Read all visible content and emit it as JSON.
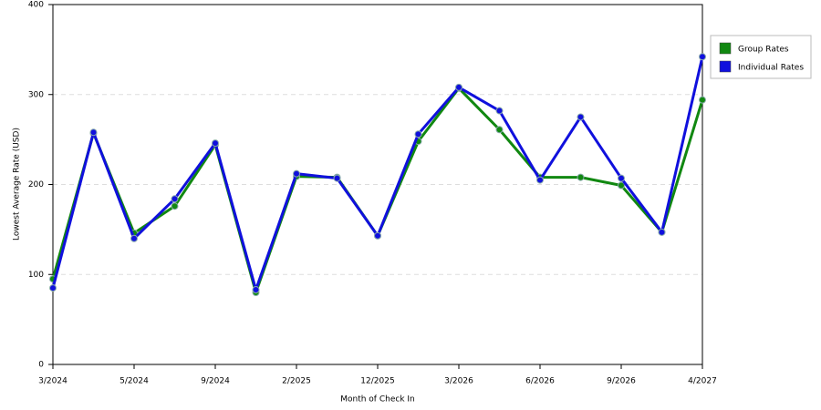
{
  "chart_data": {
    "type": "line",
    "x_label": "Month of Check In",
    "y_label": "Lowest Average Rate (USD)",
    "categories": [
      "3/2024",
      null,
      "5/2024",
      null,
      "9/2024",
      null,
      "2/2025",
      null,
      "12/2025",
      null,
      "3/2026",
      null,
      "6/2026",
      null,
      "9/2026",
      null,
      "4/2027"
    ],
    "series": [
      {
        "name": "Group Rates",
        "color": "#118811",
        "values": [
          95,
          257,
          146,
          176,
          244,
          80,
          209,
          208,
          143,
          248,
          307,
          261,
          208,
          208,
          199,
          147,
          294
        ]
      },
      {
        "name": "Individual Rates",
        "color": "#1010dd",
        "values": [
          85,
          258,
          140,
          184,
          246,
          83,
          212,
          207,
          143,
          256,
          308,
          282,
          205,
          275,
          207,
          147,
          342
        ]
      }
    ],
    "ylim": [
      0,
      400
    ],
    "yticks": [
      0,
      100,
      200,
      300,
      400
    ],
    "grid": true,
    "legend": "right"
  }
}
